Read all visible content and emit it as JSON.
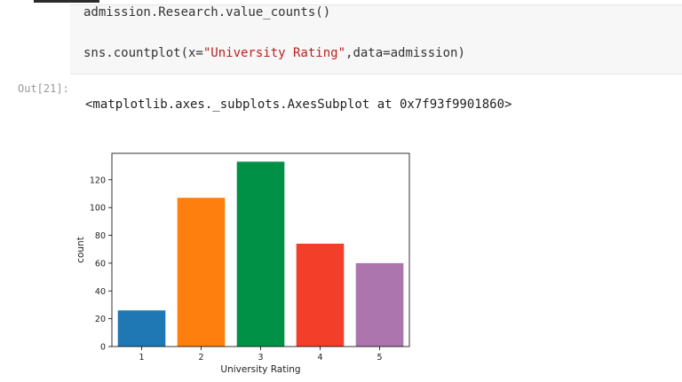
{
  "notebook": {
    "input_cell": {
      "line1": "admission.Research.value_counts()",
      "line2_prefix": "sns.countplot(x=",
      "line2_string": "\"University Rating\"",
      "line2_suffix": ",data=admission)"
    },
    "output_prompt": "Out[21]:",
    "output_text": "<matplotlib.axes._subplots.AxesSubplot at 0x7f93f9901860>"
  },
  "chart_data": {
    "type": "bar",
    "categories": [
      "1",
      "2",
      "3",
      "4",
      "5"
    ],
    "values": [
      26,
      107,
      133,
      74,
      60
    ],
    "colors": [
      "#1f77b4",
      "#ff7f0e",
      "#009147",
      "#f33e2a",
      "#ad75ae"
    ],
    "xlabel": "University Rating",
    "ylabel": "count",
    "ylim": [
      0,
      139
    ],
    "yticks": [
      0,
      20,
      40,
      60,
      80,
      100,
      120
    ],
    "grid": false
  }
}
